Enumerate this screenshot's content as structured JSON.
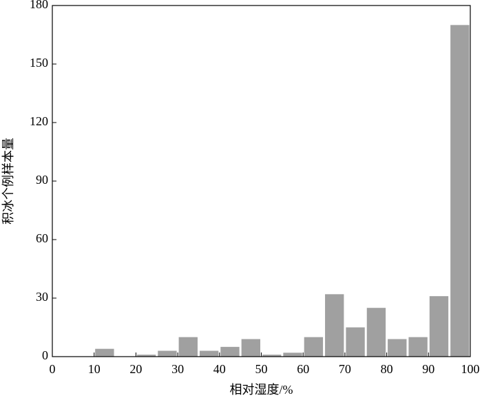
{
  "chart_data": {
    "type": "histogram",
    "xlabel": "相对湿度/%",
    "ylabel": "积冰个例样本量",
    "bins": [
      0,
      5,
      10,
      15,
      20,
      25,
      30,
      35,
      40,
      45,
      50,
      55,
      60,
      65,
      70,
      75,
      80,
      85,
      90,
      95,
      100
    ],
    "values": [
      0,
      0,
      4,
      0,
      1,
      3,
      10,
      3,
      5,
      9,
      1,
      2,
      10,
      32,
      15,
      25,
      9,
      10,
      31,
      170
    ],
    "color": "#a0a0a0",
    "xlim": [
      0,
      100
    ],
    "xticks": [
      0,
      10,
      20,
      30,
      40,
      50,
      60,
      70,
      80,
      90,
      100
    ],
    "ylim": [
      0,
      180
    ],
    "yticks": [
      0,
      30,
      60,
      90,
      120,
      150,
      180
    ]
  }
}
